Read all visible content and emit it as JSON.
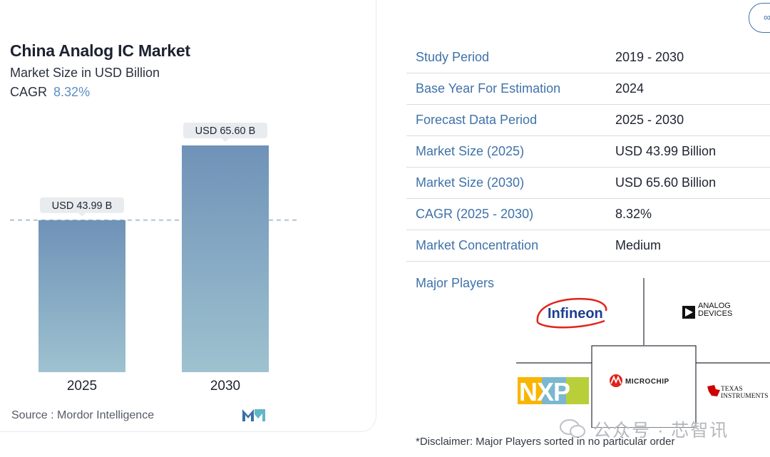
{
  "header": {
    "title": "China Analog IC Market",
    "subtitle": "Market Size in USD Billion",
    "cagr_label": "CAGR",
    "cagr_value": "8.32%"
  },
  "chart_data": {
    "type": "bar",
    "categories": [
      "2025",
      "2030"
    ],
    "values": [
      43.99,
      65.6
    ],
    "data_labels": [
      "USD 43.99 B",
      "USD 65.60 B"
    ],
    "title": "China Analog IC Market",
    "subtitle": "Market Size in USD Billion",
    "xlabel": "",
    "ylabel": "",
    "ylim": [
      0,
      65.6
    ],
    "reference_line_value": 43.99,
    "grid": false,
    "colors": {
      "bar_top": "#6f92b8",
      "bar_bottom": "#9ec2cf",
      "label_bg": "#e9ecef",
      "dashed_line": "#8aa4b8"
    }
  },
  "footer": {
    "source": "Source :  Mordor Intelligence",
    "brand_icon": "mordor-logo-icon"
  },
  "table": {
    "rows": [
      {
        "key": "Study Period",
        "value": "2019 - 2030"
      },
      {
        "key": "Base Year For Estimation",
        "value": "2024"
      },
      {
        "key": "Forecast Data Period",
        "value": "2025 - 2030"
      },
      {
        "key": "Market Size (2025)",
        "value": "USD 43.99 Billion"
      },
      {
        "key": "Market Size (2030)",
        "value": "USD 65.60 Billion"
      },
      {
        "key": "CAGR (2025 - 2030)",
        "value": "8.32%"
      },
      {
        "key": "Market Concentration",
        "value": "Medium"
      }
    ]
  },
  "players": {
    "label": "Major Players",
    "logos": [
      "Infineon",
      "ANALOG DEVICES",
      "NXP",
      "MICROCHIP",
      "TEXAS INSTRUMENTS"
    ]
  },
  "disclaimer": "*Disclaimer: Major Players sorted in no particular order",
  "top_button_icon": "share-icon",
  "top_button_label": "∞",
  "watermark": "公众号 · 芯智讯"
}
